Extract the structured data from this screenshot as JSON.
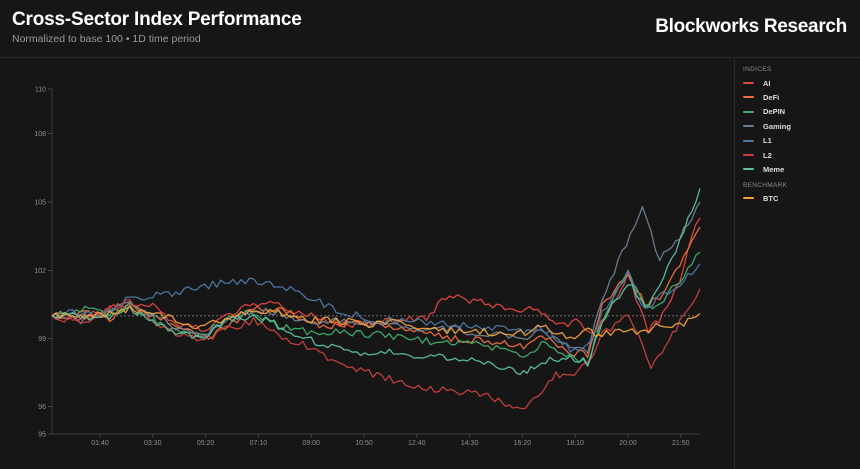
{
  "header": {
    "title": "Cross-Sector Index Performance",
    "subtitle": "Normalized to base 100 • 1D time period",
    "brand": "Blockworks Research"
  },
  "legend": {
    "indices_label": "INDICES",
    "benchmark_label": "BENCHMARK",
    "indices": [
      {
        "label": "AI",
        "color": "#e0463f"
      },
      {
        "label": "DeFi",
        "color": "#ef6e3a"
      },
      {
        "label": "DePIN",
        "color": "#3fae6b"
      },
      {
        "label": "Gaming",
        "color": "#6f7f93"
      },
      {
        "label": "L1",
        "color": "#4f78a8"
      },
      {
        "label": "L2",
        "color": "#c74040"
      },
      {
        "label": "Meme",
        "color": "#5bc0a0"
      }
    ],
    "benchmark": [
      {
        "label": "BTC",
        "color": "#f0a23a"
      }
    ]
  },
  "chart_data": {
    "type": "line",
    "title": "Cross-Sector Index Performance",
    "subtitle": "Normalized to base 100 • 1D time period",
    "xlabel": "",
    "ylabel": "",
    "ylim": [
      95,
      110
    ],
    "yticks": [
      95,
      96,
      99,
      102,
      105,
      108,
      110
    ],
    "xticks": [
      "01:40",
      "03:30",
      "05:20",
      "07:10",
      "09:00",
      "10:50",
      "12:40",
      "14:30",
      "16:20",
      "18:10",
      "20:00",
      "21:50"
    ],
    "xtick_hours": [
      1.667,
      3.5,
      5.333,
      7.167,
      9.0,
      10.833,
      12.667,
      14.5,
      16.333,
      18.167,
      20.0,
      21.833
    ],
    "xlim_hours": [
      0,
      22.5
    ],
    "baseline": 100,
    "series": [
      {
        "name": "AI",
        "hours": [
          0,
          1,
          2,
          2.7,
          3.5,
          4.3,
          5.3,
          6,
          7,
          8,
          9,
          10,
          11,
          12,
          13,
          13.8,
          14.5,
          15.3,
          16.3,
          17,
          17.5,
          18.2,
          18.8,
          19.2,
          20,
          20.7,
          21.2,
          21.8,
          22.2,
          22.5
        ],
        "values": [
          100,
          99.9,
          100.3,
          100.5,
          100.4,
          99.7,
          99.4,
          99.9,
          100.6,
          100.4,
          100,
          99.6,
          99.6,
          99.8,
          99.9,
          101,
          100.7,
          100.5,
          100.3,
          100.2,
          99.5,
          99.8,
          99.2,
          100,
          101.8,
          99.3,
          100,
          101.5,
          103.4,
          104.3
        ]
      },
      {
        "name": "DeFi",
        "hours": [
          0,
          1,
          2,
          2.7,
          3.5,
          4.3,
          5.3,
          6,
          7,
          8,
          9,
          10,
          11,
          12,
          13,
          14,
          15,
          16,
          16.5,
          17,
          18,
          18.6,
          19.1,
          20,
          20.6,
          21.1,
          21.8,
          22.5
        ],
        "values": [
          100,
          100.2,
          99.9,
          100.4,
          100,
          99.6,
          99,
          99.5,
          100.3,
          100.3,
          99.6,
          99.6,
          99.7,
          99.5,
          99.2,
          99,
          98.9,
          98.8,
          98.6,
          99.2,
          98.4,
          98.3,
          100.5,
          101.8,
          100.5,
          100.7,
          102.3,
          103.9
        ]
      },
      {
        "name": "DePIN",
        "hours": [
          0,
          1,
          2,
          2.7,
          3.5,
          4.3,
          5.3,
          6,
          7,
          8,
          9,
          10,
          11,
          12,
          13,
          14,
          15,
          16,
          16.5,
          17,
          18,
          18.6,
          19.1,
          20,
          20.6,
          21.1,
          21.8,
          22.5
        ],
        "values": [
          100,
          100.3,
          100.1,
          100.5,
          99.9,
          99.3,
          99.1,
          99.9,
          100.1,
          99.5,
          99.3,
          99.3,
          99.2,
          99.1,
          98.9,
          98.8,
          98.7,
          98.4,
          98.3,
          98.8,
          98.2,
          98,
          99.8,
          102,
          100.3,
          100.6,
          101.5,
          102.8
        ]
      },
      {
        "name": "Gaming",
        "hours": [
          0,
          1,
          2,
          2.7,
          3.5,
          4.3,
          5.3,
          6,
          7,
          8,
          9,
          10,
          11,
          12,
          13,
          14,
          15,
          16,
          16.5,
          17,
          18,
          18.6,
          19.1,
          19.8,
          20.5,
          21.1,
          21.8,
          22.5
        ],
        "values": [
          100,
          99.8,
          100.2,
          100.6,
          100,
          99.5,
          99.1,
          99.7,
          100.3,
          100.1,
          99.7,
          99.8,
          99.6,
          99.5,
          99.4,
          99.4,
          99.2,
          99.1,
          99,
          99.4,
          98.6,
          98.5,
          100.7,
          102.8,
          104.7,
          102.5,
          103.5,
          105
        ]
      },
      {
        "name": "L1",
        "hours": [
          0,
          1,
          2,
          2.7,
          3.5,
          4.3,
          5.3,
          6,
          7,
          8,
          9,
          9.6,
          10,
          11,
          12,
          13,
          14,
          15,
          16,
          16.5,
          17,
          18,
          18.6,
          19.1,
          20,
          20.6,
          21.1,
          21.8,
          22.5
        ],
        "values": [
          100,
          100.2,
          100.1,
          100.8,
          100.9,
          101,
          101.3,
          101.5,
          101.6,
          101.3,
          100.8,
          100.4,
          100.2,
          99.9,
          99.8,
          99.7,
          99.6,
          99.5,
          99.4,
          99.3,
          99.5,
          98.5,
          98.7,
          100.1,
          101.9,
          100.2,
          100.8,
          101.4,
          102.3
        ]
      },
      {
        "name": "L2",
        "hours": [
          0,
          1,
          2,
          2.7,
          3.5,
          4.3,
          5.3,
          6,
          7,
          8,
          9,
          10,
          11,
          12,
          13,
          14,
          15,
          15.5,
          16,
          16.3,
          17,
          17.5,
          18,
          18.4,
          18.8,
          19.1,
          20,
          20.5,
          20.8,
          21.3,
          21.8,
          22.5
        ],
        "values": [
          100,
          99.7,
          100.3,
          100.6,
          99.8,
          99.2,
          98.9,
          99.4,
          99.8,
          99,
          98.6,
          97.8,
          97.5,
          97.1,
          96.8,
          96.7,
          96.5,
          96.3,
          96,
          95.8,
          96.7,
          97.4,
          97.3,
          97.7,
          98.3,
          99.2,
          100,
          98.8,
          97.8,
          98.5,
          99.8,
          101.2
        ]
      },
      {
        "name": "Meme",
        "hours": [
          0,
          1,
          2,
          2.7,
          3.5,
          4.3,
          5.3,
          6,
          7,
          8,
          9,
          10,
          11,
          12,
          13,
          14,
          15,
          16,
          16.5,
          17,
          18,
          18.6,
          19.1,
          20,
          20.6,
          21.1,
          21.8,
          22.5
        ],
        "values": [
          100,
          100,
          99.9,
          100.3,
          99.8,
          99.3,
          99,
          99.8,
          100,
          99.5,
          98.9,
          98.5,
          98.3,
          98.4,
          98.2,
          98.1,
          98,
          97.6,
          97.5,
          98,
          98.2,
          97.9,
          99.8,
          101.5,
          100.3,
          101.3,
          103.3,
          105.6
        ]
      },
      {
        "name": "BTC",
        "hours": [
          0,
          1,
          2,
          2.7,
          3.5,
          4.3,
          5.3,
          6,
          7,
          8,
          9,
          10,
          11,
          12,
          13,
          14,
          15,
          16,
          17,
          18,
          18.6,
          19.1,
          20,
          20.6,
          21.1,
          21.8,
          22.5
        ],
        "values": [
          100,
          100,
          100.1,
          100.3,
          100.1,
          99.8,
          99.5,
          99.9,
          100.3,
          100.1,
          99.8,
          99.8,
          99.6,
          99.7,
          99.5,
          99.3,
          99.3,
          99.1,
          99.5,
          99,
          99.3,
          99.2,
          99.4,
          99.3,
          99.6,
          99.6,
          100.1
        ]
      }
    ]
  }
}
